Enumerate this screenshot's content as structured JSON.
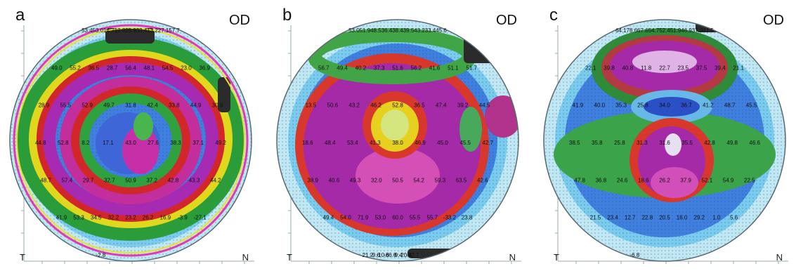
{
  "figure": {
    "panels": [
      {
        "letter": "a",
        "eye": "OD",
        "left_label": "T",
        "right_label": "N",
        "map_pattern": "concentric rings (bullseye)",
        "sample_values": [
          "53.4",
          "53.0",
          "14.7",
          "12.8",
          "25.9",
          "33.4",
          "13.2",
          "27.1",
          "57.7",
          "49.0",
          "55.2",
          "36.5",
          "28.7",
          "56.4",
          "48.1",
          "54.5",
          "23.0",
          "36.9",
          "28.9",
          "55.5",
          "52.9",
          "49.7",
          "31.8",
          "42.4",
          "33.8",
          "44.9",
          "30.9",
          "44.8",
          "52.8",
          "8.2",
          "17.1",
          "43.0",
          "27.6",
          "38.3",
          "37.1",
          "49.2",
          "48.7",
          "57.4",
          "29.7",
          "32.7",
          "50.9",
          "37.2",
          "42.8",
          "43.3",
          "44.2",
          "41.9",
          "53.3",
          "34.5",
          "32.2",
          "23.2",
          "26.2",
          "16.9",
          "-3.9",
          "-27.1",
          "-2.8"
        ]
      },
      {
        "letter": "b",
        "eye": "OD",
        "left_label": "T",
        "right_label": "N",
        "map_pattern": "central peak with surrounding ring",
        "sample_values": [
          "53.0",
          "51.9",
          "48.5",
          "36.4",
          "38.4",
          "39.5",
          "43.2",
          "33.4",
          "45.6",
          "56.7",
          "49.4",
          "40.2",
          "37.3",
          "51.6",
          "56.2",
          "41.6",
          "51.1",
          "51.7",
          "13.5",
          "50.6",
          "43.2",
          "46.2",
          "52.8",
          "36.5",
          "47.4",
          "39.2",
          "44.5",
          "18.6",
          "48.4",
          "53.4",
          "41.3",
          "38.0",
          "46.9",
          "45.0",
          "45.5",
          "42.7",
          "38.9",
          "40.6",
          "49.3",
          "32.0",
          "50.5",
          "54.2",
          "59.3",
          "63.5",
          "42.6",
          "49.4",
          "54.0",
          "71.9",
          "53.0",
          "60.0",
          "55.5",
          "55.7",
          "-33.2",
          "23.8",
          "21.2",
          "-9.6",
          "-10.8",
          "-66.9",
          "-9.4",
          "-20.8",
          "-42.7"
        ]
      },
      {
        "letter": "c",
        "eye": "OD",
        "left_label": "T",
        "right_label": "N",
        "map_pattern": "superior arc with central ring",
        "sample_values": [
          "64.1",
          "78.6",
          "67.6",
          "54.7",
          "52.4",
          "51.9",
          "46.9",
          "37.3",
          "41.5",
          "22.1",
          "39.8",
          "40.8",
          "11.8",
          "22.7",
          "23.5",
          "37.5",
          "39.4",
          "21.1",
          "41.9",
          "40.0",
          "35.3",
          "25.8",
          "34.0",
          "36.7",
          "41.2",
          "48.7",
          "45.5",
          "38.5",
          "35.8",
          "25.8",
          "31.3",
          "31.6",
          "35.5",
          "42.8",
          "49.8",
          "46.6",
          "47.8",
          "36.8",
          "24.6",
          "18.6",
          "26.2",
          "37.9",
          "52.1",
          "54.9",
          "22.5",
          "21.5",
          "23.4",
          "12.7",
          "22.8",
          "20.5",
          "16.0",
          "29.2",
          "1.0",
          "5.6",
          "-6.8"
        ]
      }
    ]
  }
}
